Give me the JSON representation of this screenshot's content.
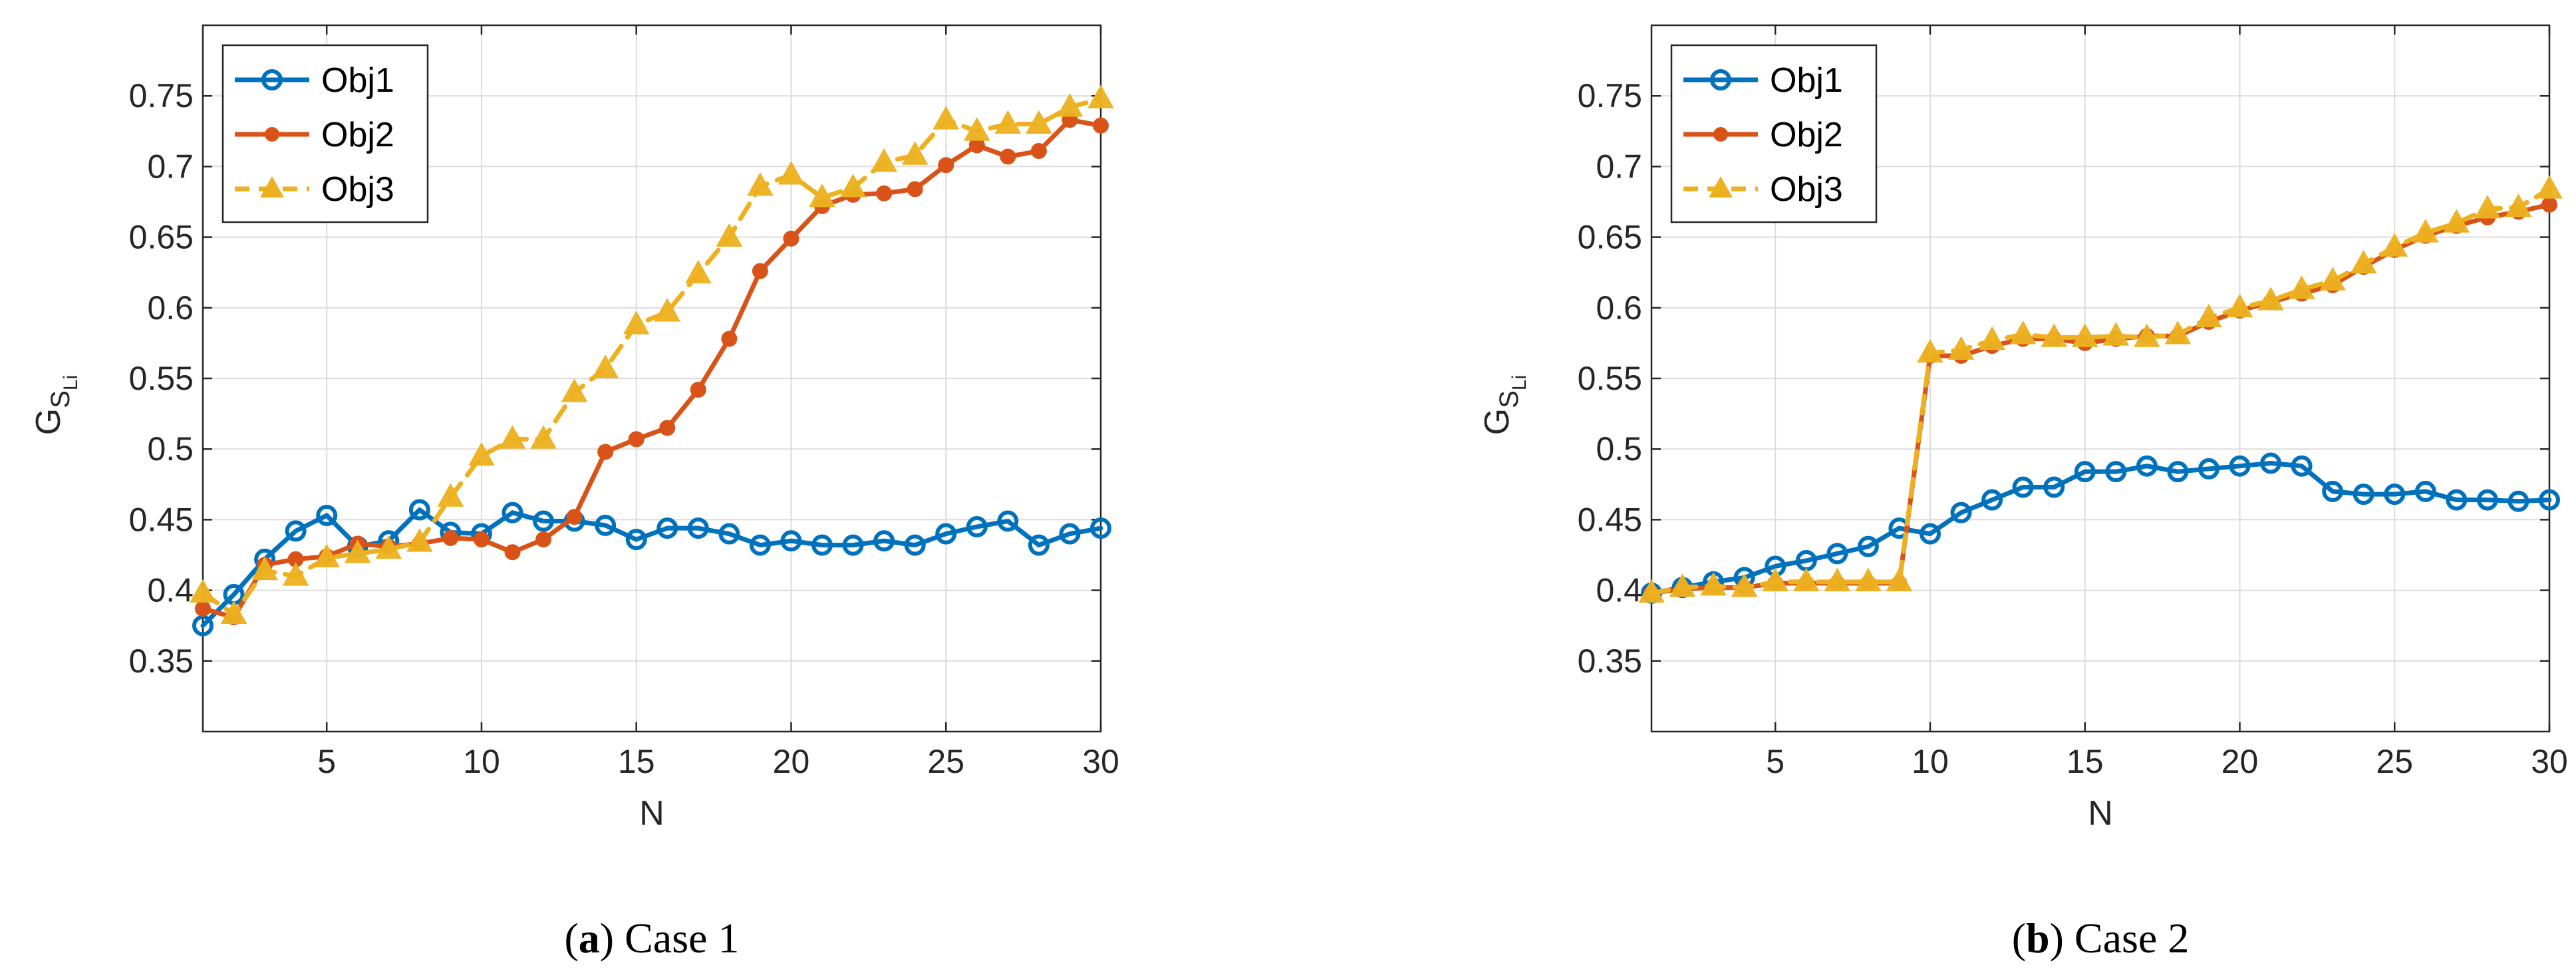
{
  "chart_data": [
    {
      "type": "line",
      "caption_label": "a",
      "caption_text": "Case 1",
      "xlabel": "N",
      "ylabel_main": "G",
      "ylabel_sub": "S",
      "ylabel_subsub": "Li",
      "xlim": [
        1,
        30
      ],
      "ylim": [
        0.3,
        0.8
      ],
      "xticks": [
        5,
        10,
        15,
        20,
        25,
        30
      ],
      "yticks": [
        0.35,
        0.4,
        0.45,
        0.5,
        0.55,
        0.6,
        0.65,
        0.7,
        0.75
      ],
      "grid": true,
      "legend_position": "top-left",
      "x": [
        1,
        2,
        3,
        4,
        5,
        6,
        7,
        8,
        9,
        10,
        11,
        12,
        13,
        14,
        15,
        16,
        17,
        18,
        19,
        20,
        21,
        22,
        23,
        24,
        25,
        26,
        27,
        28,
        29,
        30
      ],
      "series": [
        {
          "name": "Obj1",
          "color": "#0072BD",
          "marker": "circle",
          "dash": false,
          "values": [
            0.375,
            0.397,
            0.422,
            0.442,
            0.453,
            0.431,
            0.435,
            0.457,
            0.441,
            0.44,
            0.455,
            0.449,
            0.449,
            0.446,
            0.436,
            0.444,
            0.444,
            0.44,
            0.432,
            0.435,
            0.432,
            0.432,
            0.435,
            0.432,
            0.44,
            0.445,
            0.449,
            0.432,
            0.44,
            0.444
          ]
        },
        {
          "name": "Obj2",
          "color": "#D95319",
          "marker": "dot",
          "dash": false,
          "values": [
            0.387,
            0.381,
            0.418,
            0.422,
            0.424,
            0.433,
            0.431,
            0.433,
            0.437,
            0.436,
            0.427,
            0.436,
            0.452,
            0.498,
            0.507,
            0.515,
            0.542,
            0.578,
            0.626,
            0.649,
            0.672,
            0.68,
            0.681,
            0.684,
            0.701,
            0.715,
            0.707,
            0.711,
            0.733,
            0.729
          ]
        },
        {
          "name": "Obj3",
          "color": "#EDB120",
          "marker": "triangle",
          "dash": true,
          "values": [
            0.398,
            0.383,
            0.414,
            0.41,
            0.423,
            0.426,
            0.429,
            0.434,
            0.466,
            0.495,
            0.507,
            0.507,
            0.54,
            0.557,
            0.588,
            0.597,
            0.624,
            0.65,
            0.686,
            0.694,
            0.678,
            0.685,
            0.703,
            0.708,
            0.733,
            0.725,
            0.73,
            0.73,
            0.742,
            0.748
          ]
        }
      ]
    },
    {
      "type": "line",
      "caption_label": "b",
      "caption_text": "Case 2",
      "xlabel": "N",
      "ylabel_main": "G",
      "ylabel_sub": "S",
      "ylabel_subsub": "Li",
      "xlim": [
        1,
        30
      ],
      "ylim": [
        0.3,
        0.8
      ],
      "xticks": [
        5,
        10,
        15,
        20,
        25,
        30
      ],
      "yticks": [
        0.35,
        0.4,
        0.45,
        0.5,
        0.55,
        0.6,
        0.65,
        0.7,
        0.75
      ],
      "grid": true,
      "legend_position": "top-left",
      "x": [
        1,
        2,
        3,
        4,
        5,
        6,
        7,
        8,
        9,
        10,
        11,
        12,
        13,
        14,
        15,
        16,
        17,
        18,
        19,
        20,
        21,
        22,
        23,
        24,
        25,
        26,
        27,
        28,
        29,
        30
      ],
      "series": [
        {
          "name": "Obj1",
          "color": "#0072BD",
          "marker": "circle",
          "dash": false,
          "values": [
            0.398,
            0.402,
            0.406,
            0.409,
            0.417,
            0.421,
            0.426,
            0.431,
            0.444,
            0.44,
            0.455,
            0.464,
            0.473,
            0.473,
            0.484,
            0.484,
            0.488,
            0.484,
            0.486,
            0.488,
            0.49,
            0.488,
            0.47,
            0.468,
            0.468,
            0.47,
            0.464,
            0.464,
            0.463,
            0.464
          ]
        },
        {
          "name": "Obj2",
          "color": "#D95319",
          "marker": "dot",
          "dash": false,
          "values": [
            0.398,
            0.401,
            0.402,
            0.402,
            0.405,
            0.405,
            0.405,
            0.405,
            0.405,
            0.566,
            0.566,
            0.573,
            0.578,
            0.578,
            0.575,
            0.578,
            0.58,
            0.58,
            0.59,
            0.598,
            0.604,
            0.61,
            0.616,
            0.629,
            0.641,
            0.651,
            0.658,
            0.664,
            0.668,
            0.673
          ]
        },
        {
          "name": "Obj3",
          "color": "#EDB120",
          "marker": "triangle",
          "dash": true,
          "values": [
            0.398,
            0.402,
            0.403,
            0.402,
            0.406,
            0.406,
            0.406,
            0.406,
            0.406,
            0.568,
            0.57,
            0.577,
            0.581,
            0.579,
            0.579,
            0.58,
            0.579,
            0.581,
            0.593,
            0.6,
            0.605,
            0.613,
            0.619,
            0.631,
            0.643,
            0.653,
            0.66,
            0.67,
            0.671,
            0.684
          ]
        }
      ]
    }
  ]
}
